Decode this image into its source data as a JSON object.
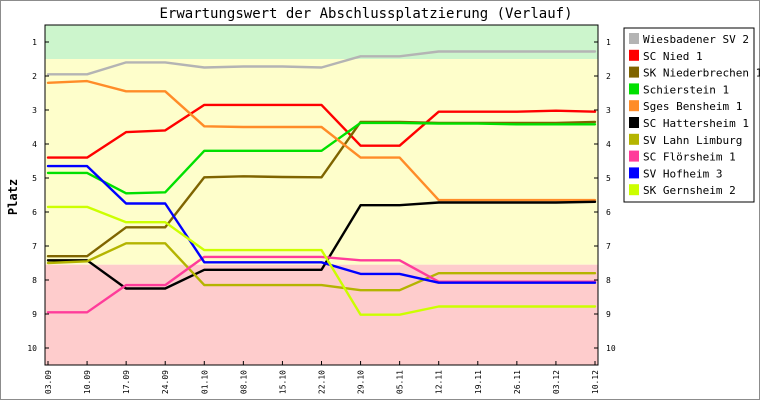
{
  "chart_data": {
    "type": "line",
    "title": "Erwartungswert der Abschlussplatzierung (Verlauf)",
    "ylabel": "Platz",
    "xlabel": "",
    "ylim": [
      0.5,
      10.5
    ],
    "y_inverted": true,
    "y_ticks": [
      "1",
      "2",
      "3",
      "4",
      "5",
      "6",
      "7",
      "8",
      "9",
      "10"
    ],
    "categories": [
      "03.09",
      "10.09",
      "17.09",
      "24.09",
      "01.10",
      "08.10",
      "15.10",
      "22.10",
      "29.10",
      "05.11",
      "12.11",
      "19.11",
      "26.11",
      "03.12",
      "10.12"
    ],
    "grid": false,
    "legend_position": "right",
    "zones": [
      {
        "from": 0.5,
        "to": 1.5,
        "color": "#ccf5cc"
      },
      {
        "from": 1.5,
        "to": 7.55,
        "color": "#fefecb"
      },
      {
        "from": 7.55,
        "to": 10.5,
        "color": "#fecccc"
      }
    ],
    "series": [
      {
        "name": "Wiesbadener SV 2",
        "color": "#b4b4b4",
        "values": [
          1.95,
          1.95,
          1.6,
          1.6,
          1.75,
          1.72,
          1.72,
          1.75,
          1.42,
          1.42,
          1.28,
          1.28,
          1.28,
          1.28,
          1.28
        ]
      },
      {
        "name": "SC Nied 1",
        "color": "#ff0000",
        "values": [
          4.4,
          4.4,
          3.65,
          3.6,
          2.85,
          2.85,
          2.85,
          2.85,
          4.05,
          4.05,
          3.05,
          3.05,
          3.05,
          3.02,
          3.05
        ]
      },
      {
        "name": "SK Niederbrechen 1",
        "color": "#7f6400",
        "values": [
          7.3,
          7.3,
          6.45,
          6.45,
          4.98,
          4.95,
          4.97,
          4.98,
          3.35,
          3.35,
          3.38,
          3.38,
          3.38,
          3.38,
          3.35
        ]
      },
      {
        "name": "Schierstein 1",
        "color": "#00e000",
        "values": [
          4.85,
          4.85,
          5.45,
          5.42,
          4.2,
          4.2,
          4.2,
          4.2,
          3.38,
          3.38,
          3.4,
          3.4,
          3.42,
          3.42,
          3.42
        ]
      },
      {
        "name": "Sges Bensheim 1",
        "color": "#ff8c28",
        "values": [
          2.2,
          2.15,
          2.45,
          2.45,
          3.48,
          3.5,
          3.5,
          3.5,
          4.4,
          4.4,
          5.65,
          5.65,
          5.65,
          5.65,
          5.65
        ]
      },
      {
        "name": "SC Hattersheim 1",
        "color": "#000000",
        "values": [
          7.42,
          7.42,
          8.25,
          8.25,
          7.7,
          7.7,
          7.7,
          7.7,
          5.8,
          5.8,
          5.72,
          5.72,
          5.72,
          5.72,
          5.7
        ]
      },
      {
        "name": "SV Lahn Limburg",
        "color": "#b4b400",
        "values": [
          7.5,
          7.45,
          6.92,
          6.92,
          8.15,
          8.15,
          8.15,
          8.15,
          8.3,
          8.3,
          7.8,
          7.8,
          7.8,
          7.8,
          7.8
        ]
      },
      {
        "name": "SC Flörsheim 1",
        "color": "#ff3c9a",
        "values": [
          8.95,
          8.95,
          8.15,
          8.15,
          7.32,
          7.32,
          7.32,
          7.32,
          7.42,
          7.42,
          8.05,
          8.05,
          8.05,
          8.05,
          8.05
        ]
      },
      {
        "name": "SV Hofheim 3",
        "color": "#0000ff",
        "values": [
          4.65,
          4.65,
          5.75,
          5.75,
          7.48,
          7.48,
          7.48,
          7.48,
          7.82,
          7.82,
          8.08,
          8.08,
          8.08,
          8.08,
          8.08
        ]
      },
      {
        "name": "SK Gernsheim 2",
        "color": "#ccff00",
        "values": [
          5.85,
          5.85,
          6.3,
          6.3,
          7.12,
          7.12,
          7.12,
          7.12,
          9.02,
          9.02,
          8.78,
          8.78,
          8.78,
          8.78,
          8.78
        ]
      }
    ]
  }
}
